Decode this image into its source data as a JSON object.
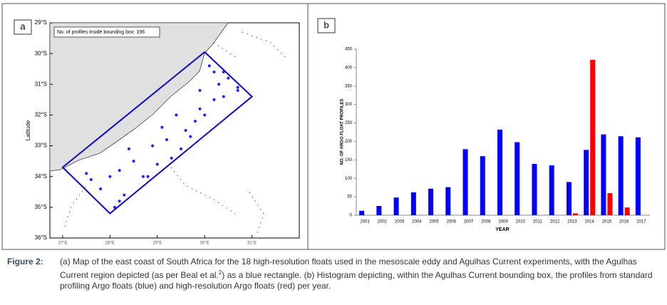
{
  "chart_data": [
    {
      "type": "map",
      "panel_label": "a",
      "annotation": "No. of profiles inside bounding box: 196",
      "ylabel": "Latitude",
      "x": [
        28.0,
        27.6,
        27.8,
        28.3,
        28.1,
        28.5,
        28.7,
        29.0,
        28.4,
        28.9,
        29.2,
        29.5,
        29.1,
        29.6,
        29.8,
        29.4,
        29.9,
        30.2,
        29.9,
        30.3,
        30.5,
        30.2,
        30.4,
        30.1,
        30.7,
        30.4,
        30.0,
        29.7,
        28.2,
        28.8,
        27.5,
        29.3,
        30.7,
        28.2
      ],
      "y": [
        -34.0,
        -34.1,
        -34.4,
        -34.6,
        -35.0,
        -33.5,
        -34.0,
        -33.6,
        -33.1,
        -33.0,
        -32.8,
        -33.1,
        -32.4,
        -32.5,
        -32.2,
        -32.0,
        -31.8,
        -31.5,
        -31.2,
        -31.0,
        -30.8,
        -30.6,
        -30.6,
        -30.4,
        -31.2,
        -31.4,
        -32.0,
        -32.7,
        -33.8,
        -34.0,
        -33.9,
        -33.4,
        -31.1,
        -34.8
      ],
      "color": "#1f1fff",
      "bounding_box": {
        "lon": [
          27.0,
          30.0,
          31.0,
          28.0
        ],
        "lat": [
          -33.7,
          -29.95,
          -31.4,
          -35.2
        ],
        "color": "#0a0ac8"
      },
      "xlim": [
        26.73,
        32.0
      ],
      "ylim": [
        -29,
        -36
      ],
      "xticks": [
        {
          "value": 27,
          "label": "27°E"
        },
        {
          "value": 28,
          "label": "28°E"
        },
        {
          "value": 29,
          "label": "29°E"
        },
        {
          "value": 30,
          "label": "30°E"
        },
        {
          "value": 31,
          "label": "31°E"
        }
      ],
      "yticks": [
        {
          "value": -29,
          "label": "29°S"
        },
        {
          "value": -30,
          "label": "30°S"
        },
        {
          "value": -31,
          "label": "31°S"
        },
        {
          "value": -32,
          "label": "32°S"
        },
        {
          "value": -33,
          "label": "33°S"
        },
        {
          "value": -34,
          "label": "34°S"
        },
        {
          "value": -35,
          "label": "35°S"
        },
        {
          "value": -36,
          "label": "36°S"
        }
      ]
    },
    {
      "type": "bar",
      "panel_label": "b",
      "xlabel": "YEAR",
      "ylabel": "NO. OF ARGO FLOAT PROFILES",
      "categories": [
        "2001",
        "2002",
        "2003",
        "2004",
        "2005",
        "2006",
        "2007",
        "2008",
        "2009",
        "2010",
        "2011",
        "2012",
        "2013",
        "2014",
        "2015",
        "2016",
        "2017"
      ],
      "series": [
        {
          "color": "#0000ff",
          "values": [
            12,
            25,
            48,
            62,
            72,
            76,
            179,
            160,
            232,
            198,
            139,
            135,
            90,
            177,
            219,
            214,
            211
          ]
        },
        {
          "color": "#ff0000",
          "values": [
            null,
            null,
            null,
            null,
            null,
            null,
            null,
            null,
            null,
            null,
            null,
            null,
            5,
            421,
            60,
            21,
            null
          ]
        }
      ],
      "ylim": [
        0,
        450
      ],
      "yticks": [
        0,
        50,
        100,
        150,
        200,
        250,
        300,
        350,
        400,
        450
      ]
    }
  ],
  "caption": {
    "label": "Figure 2:",
    "text_before": "(a) Map of the east coast of South Africa for the 18 high-resolution floats used in the mesoscale eddy and Agulhas Current experiments, with the Agulhas Current region depicted (as per Beal et al.",
    "superscript": "2",
    "text_after": ") as a blue rectangle. (b) Histogram depicting, within the Agulhas Current bounding box, the profiles from standard profiling Argo floats (blue) and high-resolution Argo floats (red) per year."
  }
}
